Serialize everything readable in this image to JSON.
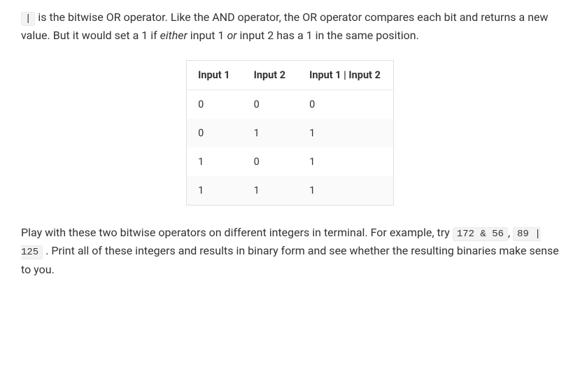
{
  "para1": {
    "code": "|",
    "seg1": " is the bitwise OR operator. Like the AND operator, the OR operator compares each bit and returns a new value. But it would set a 1 if ",
    "em1": "either",
    "seg2": " input 1 ",
    "em2": "or",
    "seg3": " input 2 has a 1 in the same position."
  },
  "table": {
    "columns": [
      "Input 1",
      "Input 2",
      "Input 1 | Input 2"
    ],
    "rows": [
      [
        "0",
        "0",
        "0"
      ],
      [
        "0",
        "1",
        "1"
      ],
      [
        "1",
        "0",
        "1"
      ],
      [
        "1",
        "1",
        "1"
      ]
    ],
    "header_bg": "#ffffff",
    "row_alt_bg": "#fafafa",
    "border_color": "#e0e0e0",
    "font_size": 14.5
  },
  "para2": {
    "seg1": "Play with these two bitwise operators on different integers in terminal. For example, try ",
    "code1": "172 & 56",
    "seg2": ", ",
    "code2": "89 | 125",
    "seg3": " . Print all of these integers and results in binary form and see whether the resulting binaries make sense to you."
  },
  "colors": {
    "text": "#333333",
    "code_bg": "#f3f3f3",
    "code_border": "#eaeaea",
    "background": "#ffffff"
  }
}
